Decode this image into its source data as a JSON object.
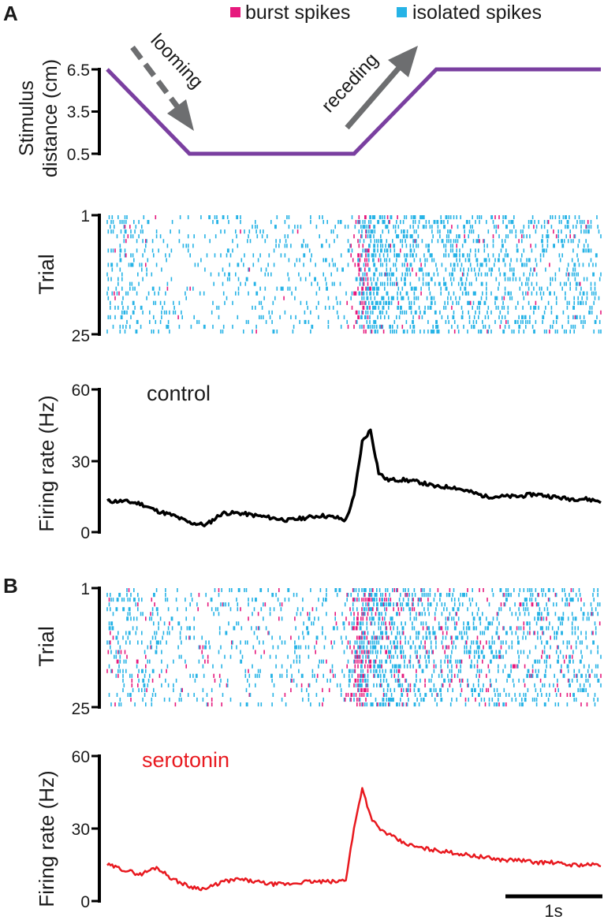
{
  "colors": {
    "burst": "#e6197d",
    "isolated": "#26b3e6",
    "stimulus": "#7a3fa0",
    "control": "#000000",
    "serotonin": "#e8191f",
    "arrow": "#6d6e70"
  },
  "panels": {
    "a": "A",
    "b": "B"
  },
  "legend": {
    "burst": "burst spikes",
    "isolated": "isolated spikes"
  },
  "scale_bar": {
    "label": "1s",
    "duration_s": 1
  },
  "chart_data": [
    {
      "type": "line",
      "id": "stimulus",
      "ylabel_line1": "Stimulus",
      "ylabel_line2": "distance (cm)",
      "yticks": [
        "6.5",
        "3.5",
        "0.5"
      ],
      "ylim": [
        0.5,
        6.5
      ],
      "x": [
        0,
        1,
        3,
        4,
        6
      ],
      "y": [
        6.5,
        0.5,
        0.5,
        6.5,
        6.5
      ],
      "annotations": [
        "looming",
        "receding"
      ]
    },
    {
      "type": "scatter",
      "id": "raster-control",
      "ylabel": "Trial",
      "yticks": [
        "1",
        "25"
      ],
      "trials": 25,
      "xlim": [
        0,
        6
      ]
    },
    {
      "type": "line",
      "id": "rate-control",
      "ylabel": "Firing rate (Hz)",
      "yticks": [
        "60",
        "30",
        "0"
      ],
      "ylim": [
        0,
        60
      ],
      "annotation": "control",
      "x": [
        0,
        0.2,
        0.4,
        0.6,
        0.8,
        1.0,
        1.2,
        1.4,
        1.6,
        1.8,
        2.0,
        2.2,
        2.4,
        2.6,
        2.8,
        2.9,
        3.0,
        3.1,
        3.2,
        3.3,
        3.4,
        3.6,
        3.8,
        4.0,
        4.2,
        4.4,
        4.6,
        4.8,
        5.0,
        5.2,
        5.4,
        5.6,
        5.8,
        6.0
      ],
      "y": [
        13,
        13,
        12,
        9,
        7,
        4,
        3,
        8,
        8,
        7,
        6,
        5,
        6,
        7,
        6,
        5,
        15,
        38,
        43,
        25,
        22,
        22,
        21,
        19,
        19,
        17,
        15,
        15,
        15,
        16,
        15,
        14,
        14,
        13
      ]
    },
    {
      "type": "scatter",
      "id": "raster-serotonin",
      "ylabel": "Trial",
      "yticks": [
        "1",
        "25"
      ],
      "trials": 25,
      "xlim": [
        0,
        6
      ]
    },
    {
      "type": "line",
      "id": "rate-serotonin",
      "ylabel": "Firing rate (Hz)",
      "yticks": [
        "60",
        "30",
        "0"
      ],
      "ylim": [
        0,
        60
      ],
      "annotation": "serotonin",
      "x": [
        0,
        0.2,
        0.4,
        0.6,
        0.8,
        1.0,
        1.2,
        1.4,
        1.6,
        1.8,
        2.0,
        2.2,
        2.4,
        2.6,
        2.8,
        2.9,
        3.0,
        3.1,
        3.2,
        3.3,
        3.4,
        3.6,
        3.8,
        4.0,
        4.2,
        4.4,
        4.6,
        4.8,
        5.0,
        5.2,
        5.4,
        5.6,
        5.8,
        6.0
      ],
      "y": [
        15,
        13,
        11,
        14,
        9,
        6,
        5,
        8,
        9,
        8,
        7,
        7,
        8,
        8,
        8,
        9,
        30,
        47,
        35,
        30,
        28,
        24,
        22,
        21,
        20,
        19,
        18,
        17,
        17,
        16,
        16,
        15,
        15,
        15
      ]
    }
  ]
}
